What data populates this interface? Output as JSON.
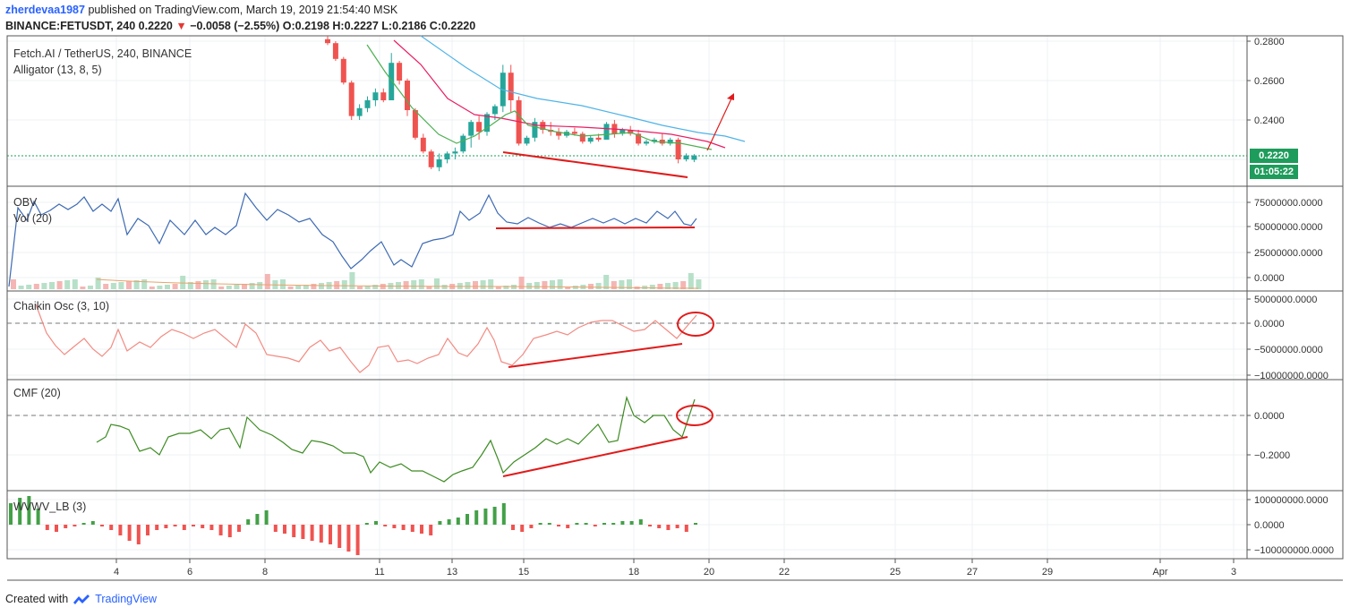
{
  "header": {
    "user": "zherdevaa1987",
    "published": "published on TradingView.com, March 19, 2019 21:54:40 MSK",
    "symbol": "BINANCE:FETUSDT, 240",
    "last": "0.2220",
    "arrow": "▼",
    "change": "−0.0058 (−2.55%)",
    "ohlc": "O:0.2198 H:0.2227 L:0.2186 C:0.2220"
  },
  "panes": {
    "main_title": "Fetch.AI / TetherUS, 240, BINANCE",
    "main_indicator": "Alligator (13, 8, 5)",
    "obv": "OBV",
    "vol": "Vol (20)",
    "chaikin": "Chaikin Osc (3, 10)",
    "cmf": "CMF (20)",
    "wvwv": "WVWV_LB (3)"
  },
  "price_badge": "0.2220",
  "countdown_badge": "01:05:22",
  "axis": {
    "price_ticks": [
      "0.2800",
      "0.2600",
      "0.2400"
    ],
    "obv_ticks": [
      "75000000.0000",
      "50000000.0000",
      "25000000.0000",
      "0.0000"
    ],
    "chaikin_ticks": [
      "5000000.0000",
      "0.0000",
      "−5000000.0000",
      "−10000000.0000"
    ],
    "cmf_ticks": [
      "0.0000",
      "−0.2000"
    ],
    "wvwv_ticks": [
      "100000000.0000",
      "0.0000",
      "−100000000.0000"
    ],
    "time_ticks": [
      "4",
      "6",
      "8",
      "11",
      "13",
      "15",
      "18",
      "20",
      "22",
      "25",
      "27",
      "29",
      "Apr",
      "3"
    ]
  },
  "footer": {
    "created": "Created with",
    "brand": "TradingView"
  },
  "colors": {
    "up": "#26a69a",
    "down": "#ef5350",
    "annot": "#e11b1b",
    "alligator_jaw": "#4fb3e8",
    "alligator_teeth": "#e91e63",
    "alligator_lips": "#4caf50",
    "obv": "#3d6ab3",
    "chaikin": "#f28b82",
    "cmf": "#3d8b22"
  }
}
